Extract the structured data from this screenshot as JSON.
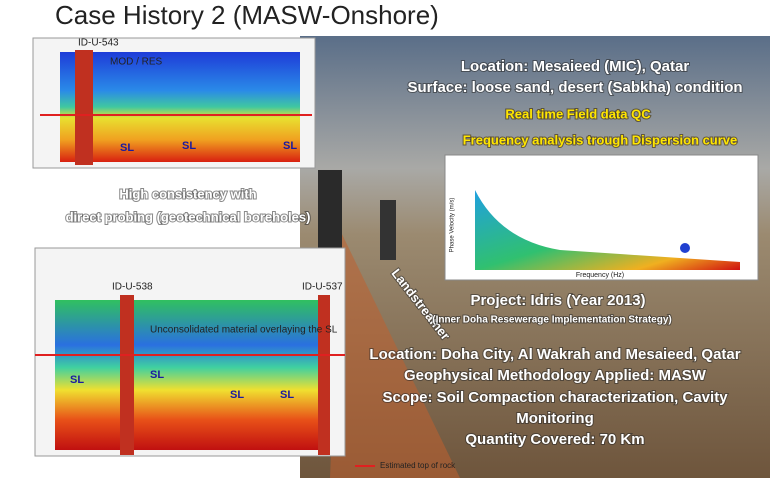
{
  "title": "Case History 2 (MASW-Onshore)",
  "location": "Location: Mesaieed (MIC), Qatar",
  "surface": "Surface: loose sand, desert (Sabkha) condition",
  "qc": "Real time Field data QC",
  "frequency": "Frequency analysis trough Dispersion curve",
  "consistency": [
    "High consistency with",
    "direct probing (geotechnical boreholes)"
  ],
  "landstreamer": "Landstreamer",
  "project": {
    "name": "Project: Idris (Year 2013)",
    "subtitle": "(Inner Doha Resewerage Implementation Strategy)",
    "lines": [
      "Location: Doha City, Al Wakrah and Mesaieed, Qatar",
      "Geophysical Methodology Applied: MASW",
      "Scope: Soil Compaction characterization, Cavity",
      "Monitoring",
      "Quantity Covered: 70 Km"
    ]
  },
  "top_panel": {
    "borehole": "ID-U-543",
    "label": "MOD / RES",
    "soil": [
      "SL",
      "SL",
      "SL"
    ]
  },
  "bottom_panel": {
    "boreholes": [
      "ID-U-538",
      "ID-U-537"
    ],
    "note": "Unconsolidated material overlaying the SL",
    "soil": [
      "SL",
      "SL",
      "SL",
      "SL"
    ],
    "legend": "Estimated top of rock"
  },
  "dispersion": {
    "x_label": "Frequency (Hz)",
    "y_label": "Phase Velocity (m/s)"
  }
}
